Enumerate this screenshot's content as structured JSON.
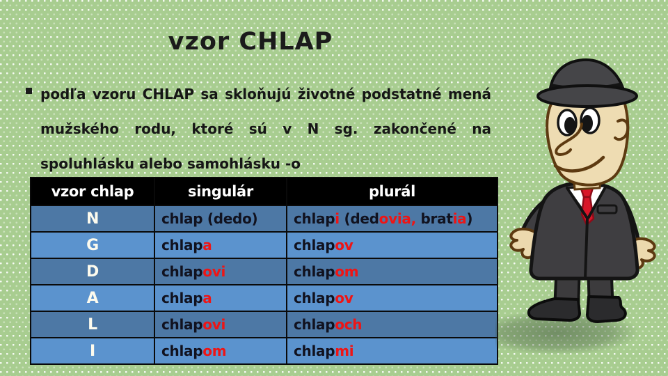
{
  "slide": {
    "title": "vzor CHLAP"
  },
  "bullet": {
    "marker": "square-bullet",
    "lines": [
      "podľa vzoru CHLAP sa skloňujú životné podstatné mená",
      "mužského rodu, ktoré sú v N sg. zakončené na",
      "spoluhlásku alebo samohlásku -o"
    ]
  },
  "table": {
    "header": [
      "vzor chlap",
      "singulár",
      "plurál"
    ],
    "rows": [
      {
        "case": "N",
        "singular": [
          [
            "chlap (dedo)",
            "b"
          ]
        ],
        "plural": [
          [
            "chlap",
            "b"
          ],
          [
            "i",
            "r"
          ],
          [
            " (ded",
            "b"
          ],
          [
            "ovia,",
            "r"
          ],
          [
            " brat",
            "b"
          ],
          [
            "ia",
            "r"
          ],
          [
            ")",
            "b"
          ]
        ]
      },
      {
        "case": "G",
        "singular": [
          [
            "chlap",
            "b"
          ],
          [
            "a",
            "r"
          ]
        ],
        "plural": [
          [
            "chlap",
            "b"
          ],
          [
            "ov",
            "r"
          ]
        ]
      },
      {
        "case": "D",
        "singular": [
          [
            "chlap",
            "b"
          ],
          [
            "ovi",
            "r"
          ]
        ],
        "plural": [
          [
            "chlap",
            "b"
          ],
          [
            "om",
            "r"
          ]
        ]
      },
      {
        "case": "A",
        "singular": [
          [
            "chlap",
            "b"
          ],
          [
            "a",
            "r"
          ]
        ],
        "plural": [
          [
            "chlap",
            "b"
          ],
          [
            "ov",
            "r"
          ]
        ]
      },
      {
        "case": "L",
        "singular": [
          [
            "chlap",
            "b"
          ],
          [
            "ovi",
            "r"
          ]
        ],
        "plural": [
          [
            "chlap",
            "b"
          ],
          [
            "och",
            "r"
          ]
        ]
      },
      {
        "case": "I",
        "singular": [
          [
            "chlap",
            "b"
          ],
          [
            "om",
            "r"
          ]
        ],
        "plural": [
          [
            "chlap",
            "b"
          ],
          [
            "mi",
            "r"
          ]
        ]
      }
    ]
  },
  "illustration": {
    "description": "cartoon man in grey fedora and dark suit with red tie"
  },
  "colors": {
    "background_green": "#a8cd90",
    "row_dark_blue": "#4d78a5",
    "row_light_blue": "#5b93ce",
    "header_black": "#000000",
    "ending_red": "#ee1515",
    "text_dark": "#11121f",
    "tie_red": "#d81628"
  }
}
